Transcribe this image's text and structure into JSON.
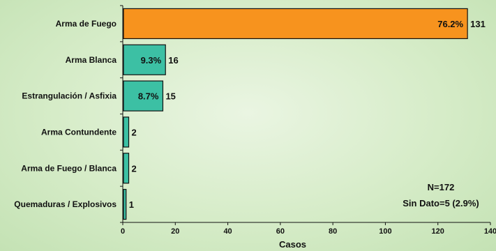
{
  "chart_data": {
    "type": "bar",
    "orientation": "horizontal",
    "categories": [
      "Arma de Fuego",
      "Arma Blanca",
      "Estrangulación / Asfixia",
      "Arma Contundente",
      "Arma de Fuego / Blanca",
      "Quemaduras / Explosivos"
    ],
    "values": [
      131,
      16,
      15,
      2,
      2,
      1
    ],
    "percent_labels": [
      "76.2%",
      "9.3%",
      "8.7%",
      "",
      "",
      ""
    ],
    "xlabel": "Casos",
    "xlim": [
      0,
      140
    ],
    "xticks": [
      0,
      20,
      40,
      60,
      80,
      100,
      120,
      140
    ],
    "annotations": [
      "N=172",
      "Sin Dato=5 (2.9%)"
    ],
    "colors": {
      "highlight": "#f7931e",
      "default": "#3cc0a4",
      "stroke": "#111111"
    },
    "grid": false
  }
}
